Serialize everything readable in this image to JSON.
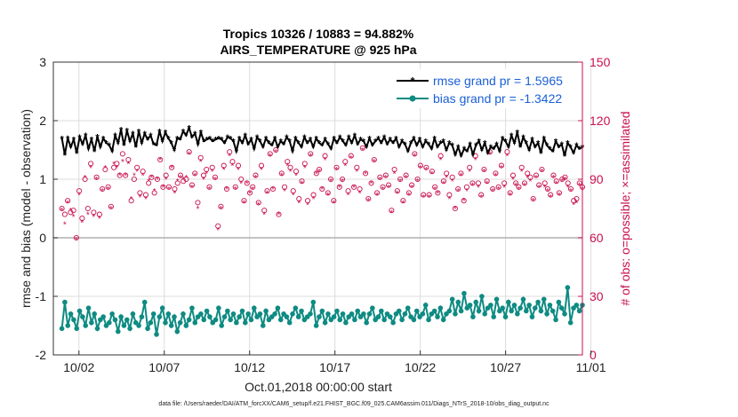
{
  "chart_data": {
    "type": "line",
    "title_line1": "Tropics 10326 / 10883 = 94.882%",
    "title_line2": "AIRS_TEMPERATURE @ 925 hPa",
    "ylabel": "rmse and bias (model - observation)",
    "ylabel_right": "# of obs: o=possible; ×=assimilated",
    "xlabel": "Oct.01,2018 00:00:00 start",
    "footnote": "data file: /Users/raeder/DAI/ATM_forcXX/CAM6_setup/f.e21.FHIST_BGC.f09_025.CAM6assim.011/Diags_NTrS_2018-10/obs_diag_output.nc",
    "ylim": [
      -2,
      3
    ],
    "ylim_right": [
      0,
      150
    ],
    "xlim": [
      0.5,
      31.5
    ],
    "yticks": [
      "-2",
      "-1",
      "0",
      "1",
      "2",
      "3"
    ],
    "yticks_right": [
      "0",
      "30",
      "60",
      "90",
      "120",
      "150"
    ],
    "xticks": [
      {
        "day": 2,
        "label": "10/02"
      },
      {
        "day": 7,
        "label": "10/07"
      },
      {
        "day": 12,
        "label": "10/12"
      },
      {
        "day": 17,
        "label": "10/17"
      },
      {
        "day": 22,
        "label": "10/22"
      },
      {
        "day": 27,
        "label": "10/27"
      },
      {
        "day": 32,
        "label": "11/01"
      }
    ],
    "series": [
      {
        "name": "rmse",
        "legend": "rmse grand pr = 1.5965",
        "color": "#000000",
        "values": [
          1.7,
          1.42,
          1.7,
          1.55,
          1.68,
          1.45,
          1.72,
          1.6,
          1.75,
          1.52,
          1.68,
          1.48,
          1.73,
          1.55,
          1.7,
          1.62,
          1.58,
          1.48,
          1.75,
          1.62,
          1.85,
          1.58,
          1.83,
          1.65,
          1.78,
          1.55,
          1.82,
          1.62,
          1.78,
          1.68,
          1.75,
          1.6,
          1.58,
          1.82,
          1.65,
          1.8,
          1.7,
          1.62,
          1.5,
          1.7,
          1.68,
          1.82,
          1.75,
          1.88,
          1.72,
          1.78,
          1.6,
          1.8,
          1.65,
          1.68,
          1.7,
          1.65,
          1.68,
          1.7,
          1.68,
          1.62,
          1.72,
          1.7,
          1.65,
          1.48,
          1.7,
          1.62,
          1.75,
          1.6,
          1.68,
          1.52,
          1.72,
          1.65,
          1.55,
          1.7,
          1.62,
          1.58,
          1.7,
          1.55,
          1.65,
          1.6,
          1.72,
          1.65,
          1.48,
          1.7,
          1.62,
          1.55,
          1.72,
          1.62,
          1.68,
          1.55,
          1.7,
          1.62,
          1.58,
          1.68,
          1.6,
          1.52,
          1.7,
          1.62,
          1.72,
          1.65,
          1.58,
          1.72,
          1.62,
          1.75,
          1.6,
          1.68,
          1.65,
          1.55,
          1.7,
          1.58,
          1.65,
          1.7,
          1.62,
          1.72,
          1.6,
          1.68,
          1.62,
          1.7,
          1.55,
          1.65,
          1.6,
          1.48,
          1.62,
          1.7,
          1.58,
          1.68,
          1.55,
          1.65,
          1.6,
          1.52,
          1.7,
          1.55,
          1.62,
          1.65,
          1.5,
          1.62,
          1.58,
          1.42,
          1.55,
          1.4,
          1.52,
          1.48,
          1.6,
          1.42,
          1.58,
          1.65,
          1.5,
          1.62,
          1.45,
          1.55,
          1.52,
          1.6,
          1.48,
          1.7,
          1.65,
          1.55,
          1.75,
          1.62,
          1.8,
          1.55,
          1.72,
          1.62,
          1.5,
          1.68,
          1.55,
          1.62,
          1.45,
          1.7,
          1.58,
          1.52,
          1.48,
          1.65,
          1.55,
          1.6,
          1.4,
          1.62,
          1.55,
          1.45,
          1.58,
          1.52,
          1.55
        ]
      },
      {
        "name": "bias",
        "legend": "bias grand pr = -1.3422",
        "color": "#0e8b82",
        "values": [
          -1.55,
          -1.1,
          -1.5,
          -1.3,
          -1.4,
          -1.55,
          -1.25,
          -1.35,
          -1.5,
          -1.2,
          -1.45,
          -1.3,
          -1.55,
          -1.4,
          -1.35,
          -1.5,
          -1.45,
          -1.3,
          -1.4,
          -1.6,
          -1.35,
          -1.5,
          -1.4,
          -1.55,
          -1.3,
          -1.45,
          -1.5,
          -1.35,
          -1.1,
          -1.55,
          -1.45,
          -1.3,
          -1.65,
          -1.35,
          -1.2,
          -1.45,
          -1.3,
          -1.5,
          -1.35,
          -1.6,
          -1.45,
          -1.3,
          -1.5,
          -1.4,
          -1.2,
          -1.45,
          -1.35,
          -1.3,
          -1.4,
          -1.25,
          -1.35,
          -1.45,
          -1.4,
          -1.2,
          -1.5,
          -1.35,
          -1.25,
          -1.4,
          -1.3,
          -1.45,
          -1.35,
          -1.25,
          -1.45,
          -1.3,
          -1.4,
          -1.2,
          -1.35,
          -1.3,
          -1.5,
          -1.25,
          -1.4,
          -1.35,
          -1.3,
          -1.2,
          -1.4,
          -1.3,
          -1.35,
          -1.45,
          -1.3,
          -1.2,
          -1.35,
          -1.25,
          -1.4,
          -1.35,
          -1.3,
          -1.1,
          -1.5,
          -1.35,
          -1.25,
          -1.45,
          -1.3,
          -1.4,
          -1.35,
          -1.25,
          -1.4,
          -1.3,
          -1.45,
          -1.35,
          -1.3,
          -1.4,
          -1.25,
          -1.35,
          -1.3,
          -1.45,
          -1.3,
          -1.2,
          -1.4,
          -1.35,
          -1.25,
          -1.4,
          -1.3,
          -1.35,
          -1.45,
          -1.3,
          -1.25,
          -1.4,
          -1.3,
          -1.2,
          -1.35,
          -1.4,
          -1.25,
          -1.35,
          -1.3,
          -1.15,
          -1.4,
          -1.3,
          -1.25,
          -1.35,
          -1.2,
          -1.4,
          -1.3,
          -1.25,
          -1.05,
          -1.3,
          -1.1,
          -1.25,
          -0.95,
          -1.2,
          -1.15,
          -1.35,
          -1.1,
          -1.25,
          -1.0,
          -1.3,
          -1.2,
          -1.15,
          -1.35,
          -1.05,
          -1.25,
          -1.2,
          -1.35,
          -1.1,
          -1.25,
          -1.15,
          -1.3,
          -1.2,
          -1.05,
          -1.25,
          -1.15,
          -1.35,
          -1.2,
          -1.1,
          -1.25,
          -1.05,
          -1.3,
          -1.15,
          -1.25,
          -1.4,
          -1.1,
          -1.2,
          -1.3,
          -0.85,
          -1.45,
          -1.2,
          -1.15,
          -1.25,
          -1.15
        ]
      }
    ],
    "possible_obs": [
      75,
      72,
      79,
      73,
      74,
      60,
      84,
      70,
      90,
      75,
      98,
      73,
      91,
      72,
      85,
      95,
      86,
      76,
      96,
      98,
      92,
      103,
      92,
      100,
      79,
      90,
      96,
      83,
      94,
      82,
      88,
      91,
      83,
      90,
      100,
      86,
      92,
      86,
      96,
      85,
      88,
      92,
      89,
      90,
      104,
      87,
      93,
      78,
      101,
      92,
      95,
      86,
      96,
      91,
      66,
      76,
      97,
      85,
      104,
      99,
      86,
      97,
      90,
      79,
      88,
      83,
      86,
      92,
      78,
      97,
      74,
      84,
      103,
      85,
      105,
      72,
      93,
      86,
      99,
      96,
      84,
      94,
      80,
      89,
      98,
      79,
      103,
      82,
      93,
      95,
      85,
      102,
      83,
      90,
      79,
      96,
      86,
      90,
      99,
      84,
      102,
      86,
      96,
      85,
      106,
      93,
      80,
      88,
      100,
      83,
      91,
      86,
      92,
      87,
      74,
      95,
      84,
      90,
      79,
      92,
      83,
      87,
      103,
      90,
      97,
      82,
      96,
      82,
      94,
      86,
      83,
      102,
      89,
      93,
      82,
      91,
      75,
      85,
      93,
      79,
      86,
      96,
      88,
      102,
      88,
      82,
      95,
      89,
      104,
      85,
      93,
      86,
      97,
      88,
      104,
      83,
      92,
      88,
      86,
      96,
      88,
      93,
      91,
      80,
      92,
      87,
      95,
      88,
      85,
      82,
      92,
      89,
      83,
      90,
      91,
      88,
      85,
      79,
      80,
      88,
      86
    ],
    "assimilated_obs": [
      74,
      67,
      78,
      74,
      71,
      59,
      82,
      68,
      91,
      72,
      96,
      71,
      90,
      70,
      84,
      96,
      85,
      75,
      98,
      96,
      92,
      99,
      92,
      98,
      80,
      92,
      94,
      81,
      92,
      80,
      89,
      91,
      84,
      90,
      100,
      86,
      90,
      85,
      96,
      83,
      89,
      91,
      90,
      91,
      103,
      86,
      92,
      75,
      99,
      90,
      93,
      85,
      94,
      90,
      64,
      75,
      95,
      85,
      102,
      97,
      85,
      95,
      88,
      78,
      88,
      83,
      85,
      91,
      77,
      95,
      72,
      83,
      102,
      85,
      104,
      72,
      92,
      84,
      97,
      94,
      82,
      92,
      78,
      88,
      96,
      77,
      102,
      80,
      93,
      94,
      85,
      100,
      82,
      89,
      78,
      95,
      86,
      89,
      97,
      82,
      101,
      86,
      94,
      83,
      105,
      93,
      79,
      88,
      99,
      82,
      90,
      85,
      91,
      86,
      73,
      93,
      83,
      89,
      78,
      91,
      82,
      86,
      102,
      89,
      96,
      81,
      95,
      81,
      93,
      85,
      83,
      100,
      88,
      91,
      80,
      89,
      75,
      84,
      92,
      79,
      84,
      94,
      87,
      100,
      86,
      81,
      94,
      88,
      103,
      84,
      92,
      85,
      96,
      86,
      102,
      82,
      90,
      87,
      85,
      94,
      87,
      91,
      89,
      79,
      91,
      86,
      94,
      86,
      84,
      81,
      91,
      88,
      82,
      89,
      90,
      86,
      84,
      77,
      78,
      87,
      85
    ]
  }
}
